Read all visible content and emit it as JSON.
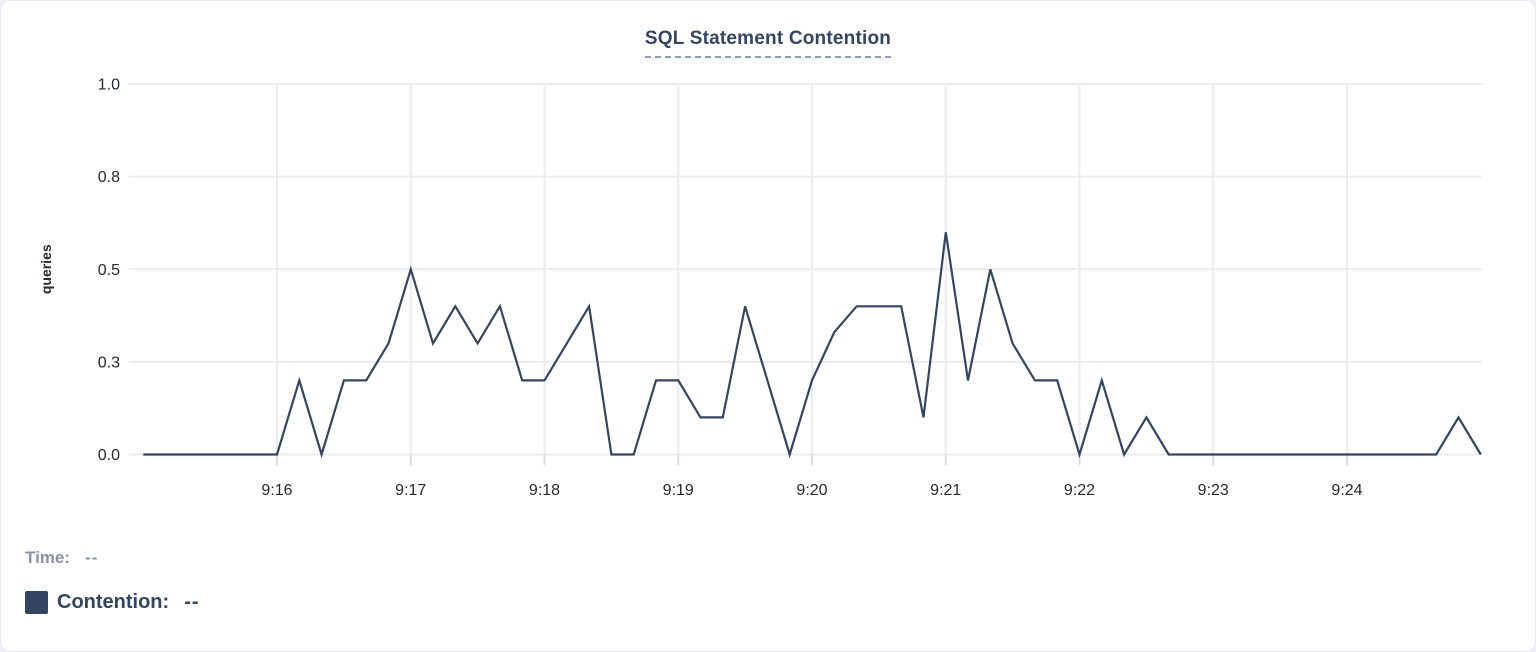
{
  "title": {
    "text": "SQL Statement Contention"
  },
  "legend": {
    "time_label": "Time:",
    "time_value": "--",
    "series_label": "Contention:",
    "series_value": "--",
    "swatch_color": "#344563"
  },
  "colors": {
    "line": "#344563",
    "grid": "#ebecf0",
    "tick": "#d9dce2",
    "axis_text": "#26292e",
    "title": "#344563",
    "muted": "#8993a4"
  },
  "chart_data": {
    "type": "line",
    "title": "SQL Statement Contention",
    "xlabel": "",
    "ylabel": "queries",
    "ylim": [
      0,
      1
    ],
    "y_ticks": [
      0,
      0.25,
      0.5,
      0.75,
      1
    ],
    "y_tick_labels": [
      "0.0",
      "0.3",
      "0.5",
      "0.8",
      "1.0"
    ],
    "x_ticks": [
      "9:16",
      "9:17",
      "9:18",
      "9:19",
      "9:20",
      "9:21",
      "9:22",
      "9:23",
      "9:24"
    ],
    "grid": true,
    "legend_position": "bottom-left",
    "series": [
      {
        "name": "Contention",
        "unit": "queries",
        "color": "#344563",
        "x": [
          "9:15:00",
          "9:15:10",
          "9:15:20",
          "9:15:30",
          "9:15:40",
          "9:15:50",
          "9:16:00",
          "9:16:10",
          "9:16:20",
          "9:16:30",
          "9:16:40",
          "9:16:50",
          "9:17:00",
          "9:17:10",
          "9:17:20",
          "9:17:30",
          "9:17:40",
          "9:17:50",
          "9:18:00",
          "9:18:10",
          "9:18:20",
          "9:18:30",
          "9:18:40",
          "9:18:50",
          "9:19:00",
          "9:19:10",
          "9:19:20",
          "9:19:30",
          "9:19:40",
          "9:19:50",
          "9:20:00",
          "9:20:10",
          "9:20:20",
          "9:20:30",
          "9:20:40",
          "9:20:50",
          "9:21:00",
          "9:21:10",
          "9:21:20",
          "9:21:30",
          "9:21:40",
          "9:21:50",
          "9:22:00",
          "9:22:10",
          "9:22:20",
          "9:22:30",
          "9:22:40",
          "9:22:50",
          "9:23:00",
          "9:23:10",
          "9:23:20",
          "9:23:30",
          "9:23:40",
          "9:23:50",
          "9:24:00",
          "9:24:10",
          "9:24:20",
          "9:24:30",
          "9:24:40",
          "9:24:50",
          "9:25:00"
        ],
        "values": [
          0,
          0,
          0,
          0,
          0,
          0,
          0,
          0.2,
          0,
          0.2,
          0.2,
          0.3,
          0.5,
          0.3,
          0.4,
          0.3,
          0.4,
          0.2,
          0.2,
          0.3,
          0.4,
          0,
          0,
          0.2,
          0.2,
          0.1,
          0.1,
          0.4,
          0.2,
          0,
          0.2,
          0.33,
          0.4,
          0.4,
          0.4,
          0.1,
          0.6,
          0.2,
          0.5,
          0.3,
          0.2,
          0.2,
          0,
          0.2,
          0,
          0.1,
          0,
          0,
          0,
          0,
          0,
          0,
          0,
          0,
          0,
          0,
          0,
          0,
          0,
          0.1,
          0
        ]
      }
    ]
  }
}
